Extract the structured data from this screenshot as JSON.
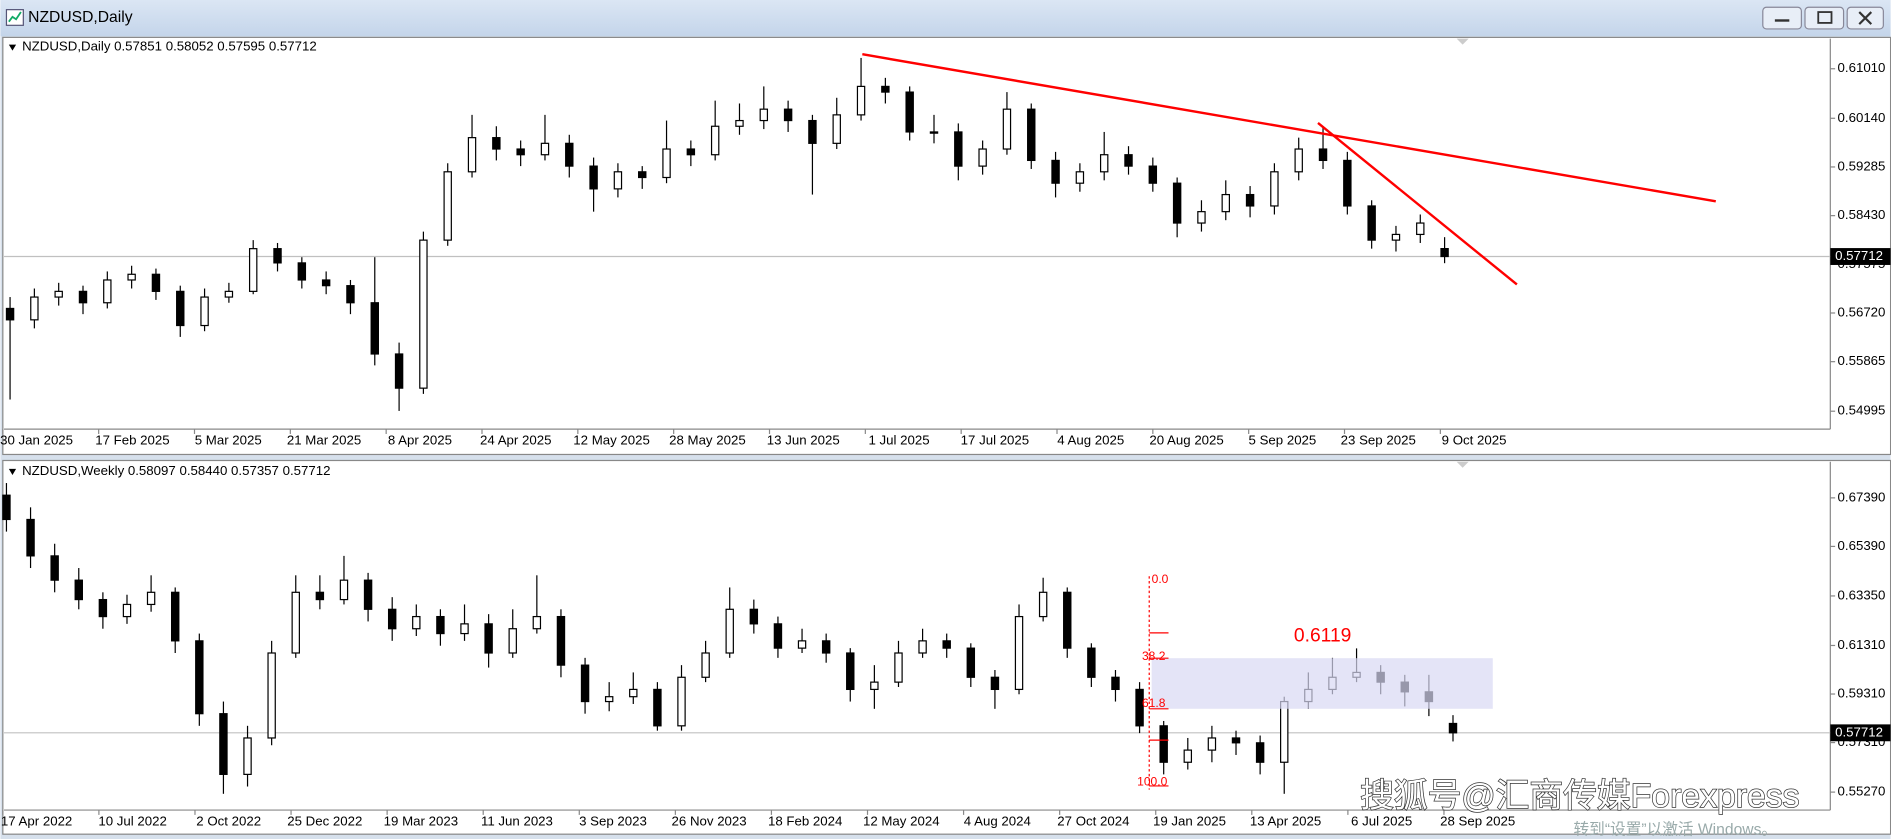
{
  "window": {
    "title": "NZDUSD,Daily"
  },
  "watermark": "搜狐号@汇商传媒Forexpress",
  "activation_notice": "转到“设置”以激活 Windows。",
  "chart_data": [
    {
      "type": "candlestick",
      "title": "NZDUSD,Daily  0.57851 0.58052 0.57595 0.57712",
      "up_color": "#ffffff",
      "down_color": "#000000",
      "ylim": [
        0.5468,
        0.6154
      ],
      "yticks": [
        {
          "value": 0.6101,
          "label": "0.61010"
        },
        {
          "value": 0.6014,
          "label": "0.60140"
        },
        {
          "value": 0.59285,
          "label": "0.59285"
        },
        {
          "value": 0.5843,
          "label": "0.58430"
        },
        {
          "value": 0.57575,
          "label": "0.57575"
        },
        {
          "value": 0.5672,
          "label": "0.56720"
        },
        {
          "value": 0.55865,
          "label": "0.55865"
        },
        {
          "value": 0.54995,
          "label": "0.54995"
        }
      ],
      "last_price": {
        "value": 0.57712,
        "label": "0.57712"
      },
      "x_labels": [
        "30 Jan 2025",
        "17 Feb 2025",
        "5 Mar 2025",
        "21 Mar 2025",
        "8 Apr 2025",
        "24 Apr 2025",
        "12 May 2025",
        "28 May 2025",
        "13 Jun 2025",
        "1 Jul 2025",
        "17 Jul 2025",
        "4 Aug 2025",
        "20 Aug 2025",
        "5 Sep 2025",
        "23 Sep 2025",
        "9 Oct 2025"
      ],
      "ohlc": [
        [
          0.568,
          0.57,
          0.552,
          0.566
        ],
        [
          0.566,
          0.5715,
          0.5645,
          0.57
        ],
        [
          0.57,
          0.5725,
          0.5685,
          0.571
        ],
        [
          0.571,
          0.572,
          0.567,
          0.569
        ],
        [
          0.569,
          0.5745,
          0.568,
          0.573
        ],
        [
          0.573,
          0.5755,
          0.5715,
          0.574
        ],
        [
          0.574,
          0.575,
          0.5695,
          0.571
        ],
        [
          0.571,
          0.572,
          0.563,
          0.565
        ],
        [
          0.565,
          0.5715,
          0.564,
          0.57
        ],
        [
          0.57,
          0.5725,
          0.569,
          0.571
        ],
        [
          0.571,
          0.58,
          0.5705,
          0.5785
        ],
        [
          0.5785,
          0.5795,
          0.5745,
          0.576
        ],
        [
          0.576,
          0.577,
          0.5715,
          0.573
        ],
        [
          0.573,
          0.5745,
          0.5705,
          0.572
        ],
        [
          0.572,
          0.573,
          0.567,
          0.569
        ],
        [
          0.569,
          0.577,
          0.558,
          0.56
        ],
        [
          0.56,
          0.562,
          0.55,
          0.554
        ],
        [
          0.554,
          0.5815,
          0.553,
          0.58
        ],
        [
          0.58,
          0.5935,
          0.579,
          0.592
        ],
        [
          0.592,
          0.602,
          0.591,
          0.598
        ],
        [
          0.598,
          0.6,
          0.594,
          0.596
        ],
        [
          0.596,
          0.5975,
          0.593,
          0.595
        ],
        [
          0.595,
          0.602,
          0.594,
          0.597
        ],
        [
          0.597,
          0.5985,
          0.591,
          0.593
        ],
        [
          0.593,
          0.5945,
          0.585,
          0.589
        ],
        [
          0.589,
          0.5935,
          0.5875,
          0.592
        ],
        [
          0.592,
          0.593,
          0.589,
          0.591
        ],
        [
          0.591,
          0.601,
          0.59,
          0.596
        ],
        [
          0.596,
          0.5975,
          0.593,
          0.595
        ],
        [
          0.595,
          0.6045,
          0.594,
          0.6
        ],
        [
          0.6,
          0.604,
          0.5985,
          0.601
        ],
        [
          0.601,
          0.607,
          0.5995,
          0.603
        ],
        [
          0.603,
          0.6045,
          0.599,
          0.601
        ],
        [
          0.601,
          0.602,
          0.588,
          0.597
        ],
        [
          0.597,
          0.605,
          0.596,
          0.602
        ],
        [
          0.602,
          0.612,
          0.601,
          0.607
        ],
        [
          0.607,
          0.6085,
          0.604,
          0.606
        ],
        [
          0.606,
          0.607,
          0.5975,
          0.599
        ],
        [
          0.599,
          0.602,
          0.597,
          0.599
        ],
        [
          0.599,
          0.6005,
          0.5905,
          0.593
        ],
        [
          0.593,
          0.5975,
          0.5915,
          0.596
        ],
        [
          0.596,
          0.606,
          0.595,
          0.603
        ],
        [
          0.603,
          0.604,
          0.5925,
          0.594
        ],
        [
          0.594,
          0.5955,
          0.5875,
          0.59
        ],
        [
          0.59,
          0.5935,
          0.5885,
          0.592
        ],
        [
          0.592,
          0.599,
          0.5905,
          0.595
        ],
        [
          0.595,
          0.5965,
          0.5915,
          0.593
        ],
        [
          0.593,
          0.5945,
          0.5885,
          0.59
        ],
        [
          0.59,
          0.591,
          0.5805,
          0.583
        ],
        [
          0.583,
          0.587,
          0.5815,
          0.585
        ],
        [
          0.585,
          0.5905,
          0.5835,
          0.588
        ],
        [
          0.588,
          0.5895,
          0.584,
          0.586
        ],
        [
          0.586,
          0.5935,
          0.5845,
          0.592
        ],
        [
          0.592,
          0.598,
          0.5905,
          0.596
        ],
        [
          0.596,
          0.6,
          0.5925,
          0.594
        ],
        [
          0.594,
          0.5955,
          0.5845,
          0.586
        ],
        [
          0.586,
          0.587,
          0.5785,
          0.58
        ],
        [
          0.58,
          0.5825,
          0.578,
          0.581
        ],
        [
          0.581,
          0.5845,
          0.5795,
          0.583
        ],
        [
          0.57851,
          0.58052,
          0.57595,
          0.57712
        ]
      ]
    },
    {
      "type": "candlestick",
      "title": "NZDUSD,Weekly  0.58097 0.58440 0.57357 0.57712",
      "up_color": "#ffffff",
      "down_color": "#000000",
      "ylim": [
        0.5453,
        0.6888
      ],
      "yticks": [
        {
          "value": 0.6739,
          "label": "0.67390"
        },
        {
          "value": 0.6539,
          "label": "0.65390"
        },
        {
          "value": 0.6335,
          "label": "0.63350"
        },
        {
          "value": 0.6131,
          "label": "0.61310"
        },
        {
          "value": 0.5931,
          "label": "0.59310"
        },
        {
          "value": 0.5731,
          "label": "0.57310"
        },
        {
          "value": 0.5527,
          "label": "0.55270"
        }
      ],
      "last_price": {
        "value": 0.57712,
        "label": "0.57712"
      },
      "x_labels": [
        "17 Apr 2022",
        "10 Jul 2022",
        "2 Oct 2022",
        "25 Dec 2022",
        "19 Mar 2023",
        "11 Jun 2023",
        "3 Sep 2023",
        "26 Nov 2023",
        "18 Feb 2024",
        "12 May 2024",
        "4 Aug 2024",
        "27 Oct 2024",
        "19 Jan 2025",
        "13 Apr 2025",
        "6 Jul 2025",
        "28 Sep 2025"
      ],
      "fib_levels": [
        "0.0",
        "38.2",
        "61.8",
        "100.0"
      ],
      "annotation": "0.6119",
      "ohlc": [
        [
          0.675,
          0.68,
          0.66,
          0.665
        ],
        [
          0.665,
          0.67,
          0.645,
          0.65
        ],
        [
          0.65,
          0.655,
          0.635,
          0.64
        ],
        [
          0.64,
          0.645,
          0.628,
          0.632
        ],
        [
          0.632,
          0.635,
          0.62,
          0.625
        ],
        [
          0.625,
          0.634,
          0.622,
          0.63
        ],
        [
          0.63,
          0.642,
          0.627,
          0.635
        ],
        [
          0.635,
          0.637,
          0.61,
          0.615
        ],
        [
          0.615,
          0.618,
          0.58,
          0.585
        ],
        [
          0.585,
          0.59,
          0.552,
          0.56
        ],
        [
          0.56,
          0.58,
          0.555,
          0.575
        ],
        [
          0.575,
          0.615,
          0.572,
          0.61
        ],
        [
          0.61,
          0.642,
          0.608,
          0.635
        ],
        [
          0.635,
          0.642,
          0.628,
          0.632
        ],
        [
          0.632,
          0.65,
          0.63,
          0.64
        ],
        [
          0.64,
          0.643,
          0.623,
          0.628
        ],
        [
          0.628,
          0.633,
          0.615,
          0.62
        ],
        [
          0.62,
          0.63,
          0.617,
          0.625
        ],
        [
          0.625,
          0.628,
          0.613,
          0.618
        ],
        [
          0.618,
          0.63,
          0.615,
          0.622
        ],
        [
          0.622,
          0.626,
          0.604,
          0.61
        ],
        [
          0.61,
          0.628,
          0.608,
          0.62
        ],
        [
          0.62,
          0.642,
          0.618,
          0.625
        ],
        [
          0.625,
          0.628,
          0.6,
          0.605
        ],
        [
          0.605,
          0.608,
          0.585,
          0.59
        ],
        [
          0.59,
          0.598,
          0.586,
          0.592
        ],
        [
          0.592,
          0.602,
          0.589,
          0.595
        ],
        [
          0.595,
          0.598,
          0.578,
          0.58
        ],
        [
          0.58,
          0.605,
          0.578,
          0.6
        ],
        [
          0.6,
          0.615,
          0.598,
          0.61
        ],
        [
          0.61,
          0.637,
          0.608,
          0.628
        ],
        [
          0.628,
          0.632,
          0.618,
          0.622
        ],
        [
          0.622,
          0.625,
          0.608,
          0.612
        ],
        [
          0.612,
          0.62,
          0.61,
          0.615
        ],
        [
          0.615,
          0.618,
          0.606,
          0.61
        ],
        [
          0.61,
          0.612,
          0.59,
          0.595
        ],
        [
          0.595,
          0.605,
          0.587,
          0.598
        ],
        [
          0.598,
          0.615,
          0.596,
          0.61
        ],
        [
          0.61,
          0.62,
          0.608,
          0.615
        ],
        [
          0.615,
          0.618,
          0.608,
          0.612
        ],
        [
          0.612,
          0.614,
          0.596,
          0.6
        ],
        [
          0.6,
          0.603,
          0.587,
          0.595
        ],
        [
          0.595,
          0.63,
          0.593,
          0.625
        ],
        [
          0.625,
          0.641,
          0.623,
          0.635
        ],
        [
          0.635,
          0.637,
          0.608,
          0.612
        ],
        [
          0.612,
          0.614,
          0.596,
          0.6
        ],
        [
          0.6,
          0.603,
          0.59,
          0.595
        ],
        [
          0.595,
          0.598,
          0.577,
          0.58
        ],
        [
          0.58,
          0.582,
          0.56,
          0.565
        ],
        [
          0.565,
          0.575,
          0.562,
          0.57
        ],
        [
          0.57,
          0.58,
          0.565,
          0.575
        ],
        [
          0.575,
          0.578,
          0.568,
          0.573
        ],
        [
          0.573,
          0.576,
          0.56,
          0.565
        ],
        [
          0.565,
          0.592,
          0.552,
          0.59
        ],
        [
          0.59,
          0.602,
          0.587,
          0.595
        ],
        [
          0.595,
          0.608,
          0.593,
          0.6
        ],
        [
          0.6,
          0.6119,
          0.598,
          0.602
        ],
        [
          0.602,
          0.605,
          0.593,
          0.598
        ],
        [
          0.598,
          0.601,
          0.588,
          0.594
        ],
        [
          0.594,
          0.601,
          0.584,
          0.59
        ],
        [
          0.58097,
          0.5844,
          0.57357,
          0.57712
        ]
      ]
    }
  ]
}
